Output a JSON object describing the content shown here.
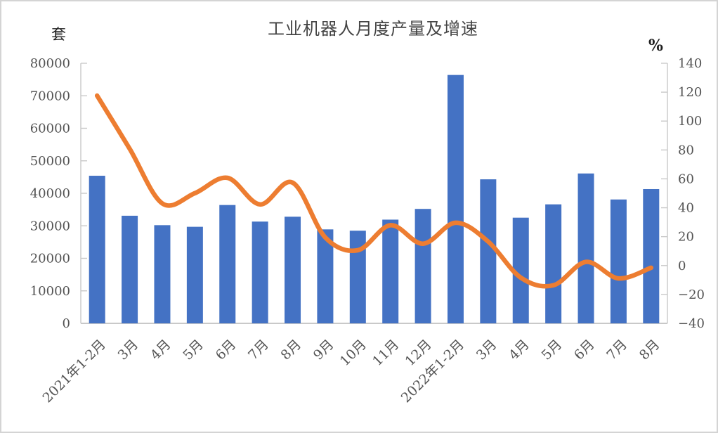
{
  "chart": {
    "title": "工业机器人月度产量及增速",
    "left_axis_unit": "套",
    "right_axis_unit": "%",
    "colors": {
      "bar": "#4472C4",
      "line": "#ED7D31",
      "axis": "#C9C9C9",
      "tick_text": "#545454",
      "title_text": "#444444"
    }
  },
  "chart_data": {
    "type": "bar+line",
    "title": "工业机器人月度产量及增速",
    "categories": [
      "2021年1-2月",
      "3月",
      "4月",
      "5月",
      "6月",
      "7月",
      "8月",
      "9月",
      "10月",
      "11月",
      "12月",
      "2022年1-2月",
      "3月",
      "4月",
      "5月",
      "6月",
      "7月",
      "8月"
    ],
    "series": [
      {
        "name": "月度产量",
        "type": "bar",
        "axis": "left",
        "unit": "套",
        "color": "#4472C4",
        "values": [
          45400,
          33100,
          30200,
          29700,
          36400,
          31300,
          32800,
          28900,
          28500,
          31900,
          35200,
          76400,
          44300,
          32500,
          36600,
          46100,
          38100,
          41300
        ]
      },
      {
        "name": "增速",
        "type": "line",
        "axis": "right",
        "unit": "%",
        "color": "#ED7D31",
        "smooth": true,
        "values": [
          117.6,
          80.8,
          43.0,
          50.1,
          60.7,
          42.3,
          57.4,
          19.5,
          10.6,
          27.9,
          15.1,
          29.6,
          16.6,
          -8.4,
          -13.7,
          2.5,
          -8.9,
          -1.5
        ]
      }
    ],
    "left_axis": {
      "unit": "套",
      "min": 0,
      "max": 80000,
      "step": 10000,
      "ticks": [
        0,
        10000,
        20000,
        30000,
        40000,
        50000,
        60000,
        70000,
        80000
      ]
    },
    "right_axis": {
      "unit": "%",
      "min": -40,
      "max": 140,
      "step": 20,
      "ticks": [
        -40,
        -20,
        0,
        20,
        40,
        60,
        80,
        100,
        120,
        140
      ]
    },
    "grid": false,
    "legend": "none",
    "x_label_rotation": -45
  }
}
